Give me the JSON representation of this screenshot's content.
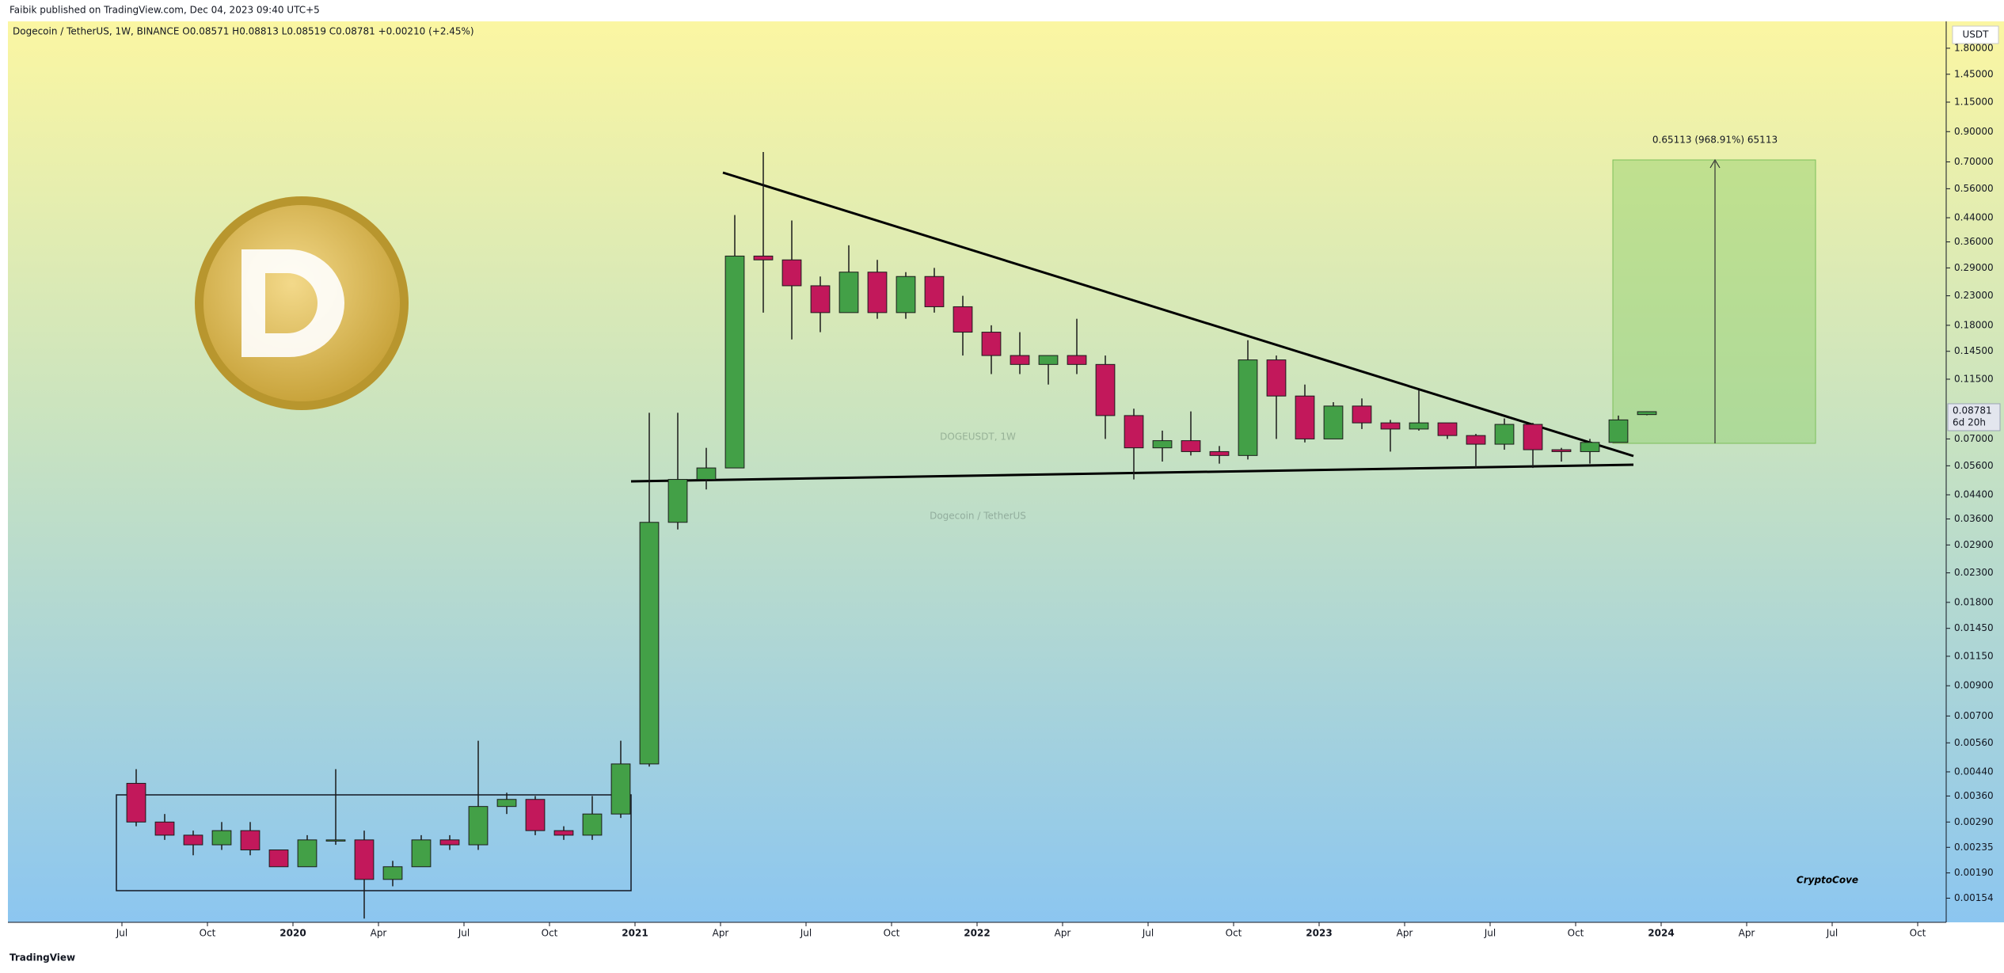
{
  "chart_data": {
    "type": "candlestick",
    "publisher_note": "Faibik published on TradingView.com, Dec 04, 2023 09:40 UTC+5",
    "title": "Dogecoin / TetherUS, 1W, BINANCE  O0.08571  H0.08813  L0.08519  C0.08781  +0.00210 (+2.45%)",
    "watermark": "DOGEUSDT, 1W",
    "watermark_subtitle": "Dogecoin / TetherUS",
    "annotation": "0.65113 (968.91%) 65113",
    "currency": "USDT",
    "price_label": "0.08781",
    "countdown": "6d 20h",
    "brand": "CryptoCove",
    "footer": "TradingView",
    "log_scale": true,
    "grid": false,
    "up_color": "#43a047",
    "down_color": "#c2185b",
    "x": [
      "2019-07",
      "2019-08",
      "2019-09",
      "2019-10",
      "2019-11",
      "2019-12",
      "2020-01",
      "2020-02",
      "2020-03",
      "2020-04",
      "2020-05",
      "2020-06",
      "2020-07",
      "2020-08",
      "2020-09",
      "2020-10",
      "2020-11",
      "2020-12",
      "2021-01",
      "2021-02",
      "2021-03",
      "2021-04",
      "2021-05",
      "2021-06",
      "2021-07",
      "2021-08",
      "2021-09",
      "2021-10",
      "2021-11",
      "2021-12",
      "2022-01",
      "2022-02",
      "2022-03",
      "2022-04",
      "2022-05",
      "2022-06",
      "2022-07",
      "2022-08",
      "2022-09",
      "2022-10",
      "2022-11",
      "2022-12",
      "2023-01",
      "2023-02",
      "2023-03",
      "2023-04",
      "2023-05",
      "2023-06",
      "2023-07",
      "2023-08",
      "2023-09",
      "2023-10",
      "2023-11",
      "2023-12"
    ],
    "open": [
      0.004,
      0.0029,
      0.0026,
      0.0024,
      0.0027,
      0.0023,
      0.002,
      0.0025,
      0.0025,
      0.0018,
      0.002,
      0.0025,
      0.0024,
      0.0033,
      0.0035,
      0.0027,
      0.0026,
      0.0031,
      0.0047,
      0.035,
      0.05,
      0.055,
      0.32,
      0.31,
      0.25,
      0.2,
      0.28,
      0.2,
      0.27,
      0.21,
      0.17,
      0.14,
      0.13,
      0.14,
      0.13,
      0.085,
      0.065,
      0.069,
      0.063,
      0.061,
      0.135,
      0.1,
      0.07,
      0.092,
      0.08,
      0.076,
      0.08,
      0.072,
      0.067,
      0.079,
      0.064,
      0.063,
      0.068,
      0.0857
    ],
    "high": [
      0.0045,
      0.0031,
      0.0027,
      0.0029,
      0.0029,
      0.0023,
      0.0026,
      0.0045,
      0.0027,
      0.0021,
      0.0026,
      0.0026,
      0.0057,
      0.0037,
      0.0036,
      0.0028,
      0.0036,
      0.0057,
      0.087,
      0.087,
      0.065,
      0.45,
      0.76,
      0.43,
      0.27,
      0.35,
      0.31,
      0.28,
      0.29,
      0.23,
      0.18,
      0.17,
      0.14,
      0.19,
      0.14,
      0.09,
      0.075,
      0.088,
      0.066,
      0.159,
      0.14,
      0.11,
      0.095,
      0.098,
      0.082,
      0.105,
      0.08,
      0.073,
      0.083,
      0.08,
      0.065,
      0.07,
      0.085,
      0.0881
    ],
    "low": [
      0.0028,
      0.0025,
      0.0022,
      0.0023,
      0.0022,
      0.002,
      0.002,
      0.0024,
      0.0013,
      0.0017,
      0.002,
      0.0023,
      0.0023,
      0.0031,
      0.0026,
      0.0025,
      0.0025,
      0.003,
      0.0046,
      0.033,
      0.046,
      0.055,
      0.2,
      0.16,
      0.17,
      0.2,
      0.19,
      0.19,
      0.2,
      0.14,
      0.12,
      0.12,
      0.11,
      0.12,
      0.07,
      0.05,
      0.058,
      0.061,
      0.057,
      0.059,
      0.07,
      0.068,
      0.07,
      0.076,
      0.063,
      0.075,
      0.07,
      0.055,
      0.064,
      0.055,
      0.058,
      0.057,
      0.068,
      0.0852
    ],
    "close": [
      0.0029,
      0.0026,
      0.0024,
      0.0027,
      0.0023,
      0.002,
      0.0025,
      0.0025,
      0.0018,
      0.002,
      0.0025,
      0.0024,
      0.0033,
      0.0035,
      0.0027,
      0.0026,
      0.0031,
      0.0047,
      0.035,
      0.05,
      0.055,
      0.32,
      0.31,
      0.25,
      0.2,
      0.28,
      0.2,
      0.27,
      0.21,
      0.17,
      0.14,
      0.13,
      0.14,
      0.13,
      0.085,
      0.065,
      0.069,
      0.063,
      0.061,
      0.135,
      0.1,
      0.07,
      0.092,
      0.08,
      0.076,
      0.08,
      0.072,
      0.067,
      0.079,
      0.064,
      0.063,
      0.068,
      0.082,
      0.0878
    ],
    "xlim": [
      "2019-03",
      "2024-11"
    ],
    "xticks": [
      {
        "value": "2019-07",
        "label": "Jul"
      },
      {
        "value": "2019-10",
        "label": "Oct"
      },
      {
        "value": "2020-01",
        "label": "2020"
      },
      {
        "value": "2020-04",
        "label": "Apr"
      },
      {
        "value": "2020-07",
        "label": "Jul"
      },
      {
        "value": "2020-10",
        "label": "Oct"
      },
      {
        "value": "2021-01",
        "label": "2021"
      },
      {
        "value": "2021-04",
        "label": "Apr"
      },
      {
        "value": "2021-07",
        "label": "Jul"
      },
      {
        "value": "2021-10",
        "label": "Oct"
      },
      {
        "value": "2022-01",
        "label": "2022"
      },
      {
        "value": "2022-04",
        "label": "Apr"
      },
      {
        "value": "2022-07",
        "label": "Jul"
      },
      {
        "value": "2022-10",
        "label": "Oct"
      },
      {
        "value": "2023-01",
        "label": "2023"
      },
      {
        "value": "2023-04",
        "label": "Apr"
      },
      {
        "value": "2023-07",
        "label": "Jul"
      },
      {
        "value": "2023-10",
        "label": "Oct"
      },
      {
        "value": "2024-01",
        "label": "2024"
      },
      {
        "value": "2024-04",
        "label": "Apr"
      },
      {
        "value": "2024-07",
        "label": "Jul"
      },
      {
        "value": "2024-10",
        "label": "Oct"
      }
    ],
    "ylim": [
      0.00126,
      2.25
    ],
    "yticks": [
      {
        "value": 1.8,
        "label": "1.80000"
      },
      {
        "value": 1.45,
        "label": "1.45000"
      },
      {
        "value": 1.15,
        "label": "1.15000"
      },
      {
        "value": 0.9,
        "label": "0.90000"
      },
      {
        "value": 0.7,
        "label": "0.70000"
      },
      {
        "value": 0.56,
        "label": "0.56000"
      },
      {
        "value": 0.44,
        "label": "0.44000"
      },
      {
        "value": 0.36,
        "label": "0.36000"
      },
      {
        "value": 0.29,
        "label": "0.29000"
      },
      {
        "value": 0.23,
        "label": "0.23000"
      },
      {
        "value": 0.18,
        "label": "0.18000"
      },
      {
        "value": 0.145,
        "label": "0.14500"
      },
      {
        "value": 0.115,
        "label": "0.11500"
      },
      {
        "value": 0.07,
        "label": "0.07000"
      },
      {
        "value": 0.056,
        "label": "0.05600"
      },
      {
        "value": 0.044,
        "label": "0.04400"
      },
      {
        "value": 0.036,
        "label": "0.03600"
      },
      {
        "value": 0.029,
        "label": "0.02900"
      },
      {
        "value": 0.023,
        "label": "0.02300"
      },
      {
        "value": 0.018,
        "label": "0.01800"
      },
      {
        "value": 0.0145,
        "label": "0.01450"
      },
      {
        "value": 0.0115,
        "label": "0.01150"
      },
      {
        "value": 0.009,
        "label": "0.00900"
      },
      {
        "value": 0.007,
        "label": "0.00700"
      },
      {
        "value": 0.0056,
        "label": "0.00560"
      },
      {
        "value": 0.0044,
        "label": "0.00440"
      },
      {
        "value": 0.0036,
        "label": "0.00360"
      },
      {
        "value": 0.0029,
        "label": "0.00290"
      },
      {
        "value": 0.00235,
        "label": "0.00235"
      },
      {
        "value": 0.0019,
        "label": "0.00190"
      },
      {
        "value": 0.00154,
        "label": "0.00154"
      }
    ]
  }
}
